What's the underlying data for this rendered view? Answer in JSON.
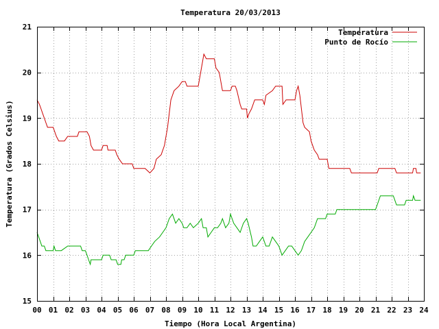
{
  "chart_data": {
    "type": "line",
    "title": "Temperatura 20/03/2013",
    "xlabel": "Tiempo (Hora Local Argentina)",
    "ylabel": "Temperatura (Grados Celsius)",
    "xlim": [
      0,
      24
    ],
    "ylim": [
      15,
      21
    ],
    "x_ticks": [
      0,
      1,
      2,
      3,
      4,
      5,
      6,
      7,
      8,
      9,
      10,
      11,
      12,
      13,
      14,
      15,
      16,
      17,
      18,
      19,
      20,
      21,
      22,
      23,
      24
    ],
    "x_tick_labels": [
      "00",
      "01",
      "02",
      "03",
      "04",
      "05",
      "06",
      "07",
      "08",
      "09",
      "10",
      "11",
      "12",
      "13",
      "14",
      "15",
      "16",
      "17",
      "18",
      "19",
      "20",
      "21",
      "22",
      "23",
      "24"
    ],
    "y_ticks": [
      15,
      16,
      17,
      18,
      19,
      20,
      21
    ],
    "y_tick_labels": [
      "15",
      "16",
      "17",
      "18",
      "19",
      "20",
      "21"
    ],
    "grid": true,
    "legend_position": "top-right",
    "series": [
      {
        "name": "Temperatura",
        "color": "#cc0000",
        "points": [
          [
            0.0,
            19.4
          ],
          [
            0.15,
            19.3
          ],
          [
            0.25,
            19.2
          ],
          [
            0.35,
            19.1
          ],
          [
            0.45,
            19.0
          ],
          [
            0.55,
            18.9
          ],
          [
            0.65,
            18.8
          ],
          [
            1.0,
            18.8
          ],
          [
            1.2,
            18.6
          ],
          [
            1.35,
            18.5
          ],
          [
            1.7,
            18.5
          ],
          [
            1.9,
            18.6
          ],
          [
            2.5,
            18.6
          ],
          [
            2.6,
            18.7
          ],
          [
            3.1,
            18.7
          ],
          [
            3.25,
            18.6
          ],
          [
            3.35,
            18.4
          ],
          [
            3.5,
            18.3
          ],
          [
            4.0,
            18.3
          ],
          [
            4.1,
            18.4
          ],
          [
            4.35,
            18.4
          ],
          [
            4.4,
            18.3
          ],
          [
            4.85,
            18.3
          ],
          [
            4.95,
            18.2
          ],
          [
            5.1,
            18.1
          ],
          [
            5.3,
            18.0
          ],
          [
            5.9,
            18.0
          ],
          [
            6.0,
            17.9
          ],
          [
            6.5,
            17.9
          ],
          [
            6.7,
            17.9
          ],
          [
            7.0,
            17.8
          ],
          [
            7.25,
            17.9
          ],
          [
            7.4,
            18.1
          ],
          [
            7.7,
            18.2
          ],
          [
            7.9,
            18.4
          ],
          [
            8.1,
            18.8
          ],
          [
            8.3,
            19.4
          ],
          [
            8.5,
            19.6
          ],
          [
            8.8,
            19.7
          ],
          [
            9.0,
            19.8
          ],
          [
            9.2,
            19.8
          ],
          [
            9.3,
            19.7
          ],
          [
            10.0,
            19.7
          ],
          [
            10.2,
            20.1
          ],
          [
            10.35,
            20.4
          ],
          [
            10.5,
            20.3
          ],
          [
            11.0,
            20.3
          ],
          [
            11.1,
            20.1
          ],
          [
            11.3,
            20.0
          ],
          [
            11.5,
            19.6
          ],
          [
            12.0,
            19.6
          ],
          [
            12.1,
            19.7
          ],
          [
            12.3,
            19.7
          ],
          [
            12.4,
            19.6
          ],
          [
            12.6,
            19.3
          ],
          [
            12.7,
            19.2
          ],
          [
            13.0,
            19.2
          ],
          [
            13.05,
            19.0
          ],
          [
            13.15,
            19.1
          ],
          [
            13.3,
            19.2
          ],
          [
            13.5,
            19.4
          ],
          [
            14.0,
            19.4
          ],
          [
            14.1,
            19.3
          ],
          [
            14.2,
            19.5
          ],
          [
            14.6,
            19.6
          ],
          [
            14.8,
            19.7
          ],
          [
            15.2,
            19.7
          ],
          [
            15.25,
            19.3
          ],
          [
            15.45,
            19.4
          ],
          [
            16.0,
            19.4
          ],
          [
            16.1,
            19.6
          ],
          [
            16.2,
            19.7
          ],
          [
            16.3,
            19.5
          ],
          [
            16.5,
            18.9
          ],
          [
            16.6,
            18.8
          ],
          [
            16.9,
            18.7
          ],
          [
            17.0,
            18.5
          ],
          [
            17.2,
            18.3
          ],
          [
            17.4,
            18.2
          ],
          [
            17.5,
            18.1
          ],
          [
            18.0,
            18.1
          ],
          [
            18.1,
            17.9
          ],
          [
            19.4,
            17.9
          ],
          [
            19.5,
            17.8
          ],
          [
            21.1,
            17.8
          ],
          [
            21.2,
            17.9
          ],
          [
            22.2,
            17.9
          ],
          [
            22.3,
            17.8
          ],
          [
            23.3,
            17.8
          ],
          [
            23.35,
            17.9
          ],
          [
            23.5,
            17.9
          ],
          [
            23.55,
            17.8
          ],
          [
            23.8,
            17.8
          ]
        ]
      },
      {
        "name": "Punto de Rocío",
        "color": "#00aa00",
        "points": [
          [
            0.0,
            16.5
          ],
          [
            0.1,
            16.4
          ],
          [
            0.2,
            16.3
          ],
          [
            0.3,
            16.2
          ],
          [
            0.45,
            16.2
          ],
          [
            0.55,
            16.1
          ],
          [
            1.0,
            16.1
          ],
          [
            1.05,
            16.2
          ],
          [
            1.15,
            16.1
          ],
          [
            1.5,
            16.1
          ],
          [
            1.9,
            16.2
          ],
          [
            2.7,
            16.2
          ],
          [
            2.8,
            16.1
          ],
          [
            3.0,
            16.1
          ],
          [
            3.1,
            16.0
          ],
          [
            3.2,
            15.9
          ],
          [
            3.3,
            15.8
          ],
          [
            3.35,
            15.9
          ],
          [
            4.0,
            15.9
          ],
          [
            4.1,
            16.0
          ],
          [
            4.5,
            16.0
          ],
          [
            4.6,
            15.9
          ],
          [
            4.9,
            15.9
          ],
          [
            5.0,
            15.8
          ],
          [
            5.2,
            15.8
          ],
          [
            5.25,
            15.9
          ],
          [
            5.4,
            15.9
          ],
          [
            5.5,
            16.0
          ],
          [
            5.7,
            16.0
          ],
          [
            6.0,
            16.0
          ],
          [
            6.1,
            16.1
          ],
          [
            6.9,
            16.1
          ],
          [
            7.1,
            16.2
          ],
          [
            7.3,
            16.3
          ],
          [
            7.6,
            16.4
          ],
          [
            7.8,
            16.5
          ],
          [
            8.0,
            16.6
          ],
          [
            8.2,
            16.8
          ],
          [
            8.4,
            16.9
          ],
          [
            8.6,
            16.7
          ],
          [
            8.8,
            16.8
          ],
          [
            9.0,
            16.7
          ],
          [
            9.1,
            16.6
          ],
          [
            9.3,
            16.6
          ],
          [
            9.5,
            16.7
          ],
          [
            9.7,
            16.6
          ],
          [
            10.0,
            16.7
          ],
          [
            10.2,
            16.8
          ],
          [
            10.3,
            16.6
          ],
          [
            10.5,
            16.6
          ],
          [
            10.6,
            16.4
          ],
          [
            10.8,
            16.5
          ],
          [
            11.0,
            16.6
          ],
          [
            11.2,
            16.6
          ],
          [
            11.4,
            16.7
          ],
          [
            11.5,
            16.8
          ],
          [
            11.7,
            16.6
          ],
          [
            11.9,
            16.7
          ],
          [
            12.0,
            16.9
          ],
          [
            12.2,
            16.7
          ],
          [
            12.4,
            16.6
          ],
          [
            12.6,
            16.5
          ],
          [
            12.8,
            16.7
          ],
          [
            13.0,
            16.8
          ],
          [
            13.1,
            16.7
          ],
          [
            13.3,
            16.4
          ],
          [
            13.4,
            16.2
          ],
          [
            13.6,
            16.2
          ],
          [
            13.8,
            16.3
          ],
          [
            14.0,
            16.4
          ],
          [
            14.2,
            16.2
          ],
          [
            14.4,
            16.2
          ],
          [
            14.6,
            16.4
          ],
          [
            14.8,
            16.3
          ],
          [
            15.0,
            16.2
          ],
          [
            15.2,
            16.0
          ],
          [
            15.4,
            16.1
          ],
          [
            15.6,
            16.2
          ],
          [
            15.8,
            16.2
          ],
          [
            16.0,
            16.1
          ],
          [
            16.2,
            16.0
          ],
          [
            16.4,
            16.1
          ],
          [
            16.6,
            16.3
          ],
          [
            16.8,
            16.4
          ],
          [
            17.0,
            16.5
          ],
          [
            17.2,
            16.6
          ],
          [
            17.4,
            16.8
          ],
          [
            17.6,
            16.8
          ],
          [
            17.9,
            16.8
          ],
          [
            18.0,
            16.9
          ],
          [
            18.5,
            16.9
          ],
          [
            18.6,
            17.0
          ],
          [
            20.0,
            17.0
          ],
          [
            21.0,
            17.0
          ],
          [
            21.1,
            17.1
          ],
          [
            21.3,
            17.3
          ],
          [
            22.1,
            17.3
          ],
          [
            22.2,
            17.2
          ],
          [
            22.3,
            17.1
          ],
          [
            22.8,
            17.1
          ],
          [
            22.9,
            17.2
          ],
          [
            23.3,
            17.2
          ],
          [
            23.35,
            17.3
          ],
          [
            23.45,
            17.2
          ],
          [
            23.8,
            17.2
          ]
        ]
      }
    ]
  }
}
